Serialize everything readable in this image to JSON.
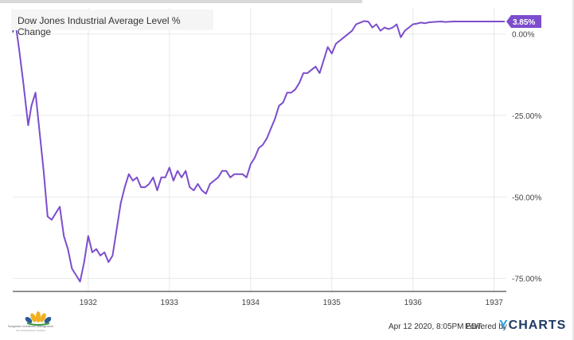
{
  "chart_data": {
    "type": "line",
    "title": "Dow Jones Industrial Average Level % Change",
    "series": [
      {
        "color": "#7c4dcc",
        "last_value_label": "3.85%",
        "x": [
          1931.07,
          1931.1,
          1931.15,
          1931.2,
          1931.26,
          1931.3,
          1931.35,
          1931.4,
          1931.45,
          1931.5,
          1931.55,
          1931.6,
          1931.65,
          1931.7,
          1931.75,
          1931.8,
          1931.85,
          1931.9,
          1931.95,
          1932.0,
          1932.05,
          1932.1,
          1932.15,
          1932.2,
          1932.25,
          1932.3,
          1932.35,
          1932.4,
          1932.45,
          1932.5,
          1932.55,
          1932.6,
          1932.65,
          1932.7,
          1932.75,
          1932.8,
          1932.85,
          1932.9,
          1932.95,
          1933.0,
          1933.05,
          1933.1,
          1933.15,
          1933.2,
          1933.25,
          1933.3,
          1933.35,
          1933.4,
          1933.45,
          1933.5,
          1933.55,
          1933.6,
          1933.65,
          1933.7,
          1933.75,
          1933.8,
          1933.85,
          1933.9,
          1933.95,
          1934.0,
          1934.05,
          1934.1,
          1934.15,
          1934.2,
          1934.25,
          1934.3,
          1934.35,
          1934.4,
          1934.45,
          1934.5,
          1934.55,
          1934.6,
          1934.65,
          1934.7,
          1934.75,
          1934.8,
          1934.85,
          1934.9,
          1934.95,
          1935.0,
          1935.05,
          1935.1,
          1935.15,
          1935.2,
          1935.25,
          1935.3,
          1935.35,
          1935.4,
          1935.45,
          1935.5,
          1935.55,
          1935.6,
          1935.65,
          1935.7,
          1935.75,
          1935.8,
          1935.85,
          1935.9,
          1935.95,
          1936.0,
          1936.05,
          1936.1,
          1936.15,
          1936.2,
          1936.25,
          1936.3,
          1936.35,
          1936.4,
          1936.45,
          1936.5,
          1936.55,
          1936.6,
          1936.65,
          1936.7,
          1936.75,
          1936.8,
          1936.85,
          1936.9,
          1936.95,
          1937.0,
          1937.05,
          1937.1,
          1937.13
        ],
        "y": [
          0.5,
          4,
          -5,
          -15,
          -28,
          -22,
          -18,
          -30,
          -42,
          -56,
          -57,
          -55,
          -53,
          -62,
          -66,
          -72,
          -74,
          -76,
          -70,
          -62,
          -67,
          -66,
          -68,
          -67,
          -70,
          -68,
          -60,
          -52,
          -47,
          -43,
          -45,
          -44,
          -47,
          -47,
          -46,
          -44,
          -48,
          -44,
          -44,
          -41,
          -45,
          -42,
          -44,
          -42,
          -47,
          -48,
          -46,
          -48,
          -49,
          -46,
          -45,
          -44,
          -42,
          -42,
          -44,
          -43,
          -43,
          -43,
          -44,
          -40,
          -38,
          -35,
          -34,
          -32,
          -29,
          -26,
          -22,
          -21,
          -18,
          -18,
          -17,
          -15,
          -12,
          -12,
          -11,
          -10,
          -12,
          -8,
          -4,
          -6,
          -3,
          -2,
          -1,
          0,
          1,
          3,
          3.5,
          4,
          3.8,
          2,
          3,
          1,
          2,
          1.5,
          2,
          3,
          -1,
          1,
          2,
          3,
          3.2,
          3.5,
          3.3,
          3.6,
          3.7,
          3.8,
          3.85,
          3.7,
          3.8,
          3.85,
          3.85,
          3.85,
          3.85,
          3.85,
          3.85,
          3.85,
          3.85,
          3.85,
          3.85,
          3.85,
          3.85,
          3.85,
          3.85
        ]
      }
    ],
    "x_ticks": [
      "1932",
      "1933",
      "1934",
      "1935",
      "1936",
      "1937"
    ],
    "y_ticks": [
      "0.00%",
      "-25.00%",
      "-50.00%",
      "-75.00%"
    ],
    "xlim": [
      1931.07,
      1937.15
    ],
    "ylim": [
      -79,
      8
    ],
    "grid": true,
    "legend": "none"
  },
  "footer": {
    "timestamp": "Apr 12 2020, 8:05PM EDT.",
    "powered_by": "Powered by",
    "brand": "CHARTS",
    "brand_y": "Y"
  },
  "logo": {
    "line1": "Sungarden Investment Management",
    "line2": "For Conscientious Investors"
  }
}
